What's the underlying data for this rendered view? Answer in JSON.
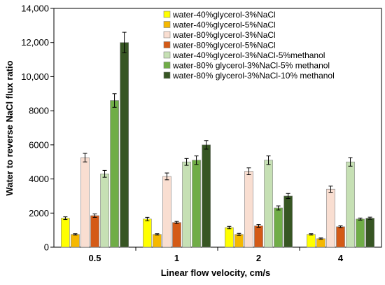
{
  "chart_data": {
    "type": "bar",
    "title": "",
    "xlabel": "Linear flow velocity, cm/s",
    "ylabel": "Water to reverse NaCl flux ratio",
    "categories": [
      "0.5",
      "1",
      "2",
      "4"
    ],
    "ylim": [
      0,
      14000
    ],
    "yticks": [
      0,
      2000,
      4000,
      6000,
      8000,
      10000,
      12000,
      14000
    ],
    "ytick_labels": [
      "0",
      "2000",
      "4000",
      "6000",
      "8000",
      "10,000",
      "12,000",
      "14,000"
    ],
    "grid": false,
    "legend_position": "top-right",
    "series": [
      {
        "name": "water-40%glycerol-3%NaCl",
        "color": "#ffff00",
        "values": [
          1700,
          1650,
          1150,
          750
        ],
        "errors": [
          80,
          100,
          70,
          40
        ]
      },
      {
        "name": "water-40%glycerol-5%NaCl",
        "color": "#f5b800",
        "values": [
          750,
          750,
          750,
          500
        ],
        "errors": [
          40,
          40,
          60,
          40
        ]
      },
      {
        "name": "water-80%glycerol-3%NaCl",
        "color": "#f9ded1",
        "values": [
          5250,
          4150,
          4450,
          3400
        ],
        "errors": [
          250,
          200,
          200,
          180
        ]
      },
      {
        "name": "water-80%glycerol-5%NaCl",
        "color": "#d45a16",
        "values": [
          1850,
          1450,
          1250,
          1200
        ],
        "errors": [
          100,
          60,
          80,
          50
        ]
      },
      {
        "name": "water-40%glycerol-3%NaCl-5%methanol",
        "color": "#c6e0b4",
        "values": [
          4300,
          5000,
          5100,
          5000
        ],
        "errors": [
          200,
          200,
          250,
          250
        ]
      },
      {
        "name": "water-80% glycerol-3%NaCl-5% methanol",
        "color": "#70ad47",
        "values": [
          8600,
          5100,
          2300,
          1650
        ],
        "errors": [
          400,
          250,
          120,
          60
        ]
      },
      {
        "name": "water-80% glycerol-3%NaCl-10% methanol",
        "color": "#375623",
        "values": [
          12000,
          6000,
          3000,
          1700
        ],
        "errors": [
          600,
          250,
          150,
          60
        ]
      }
    ]
  }
}
